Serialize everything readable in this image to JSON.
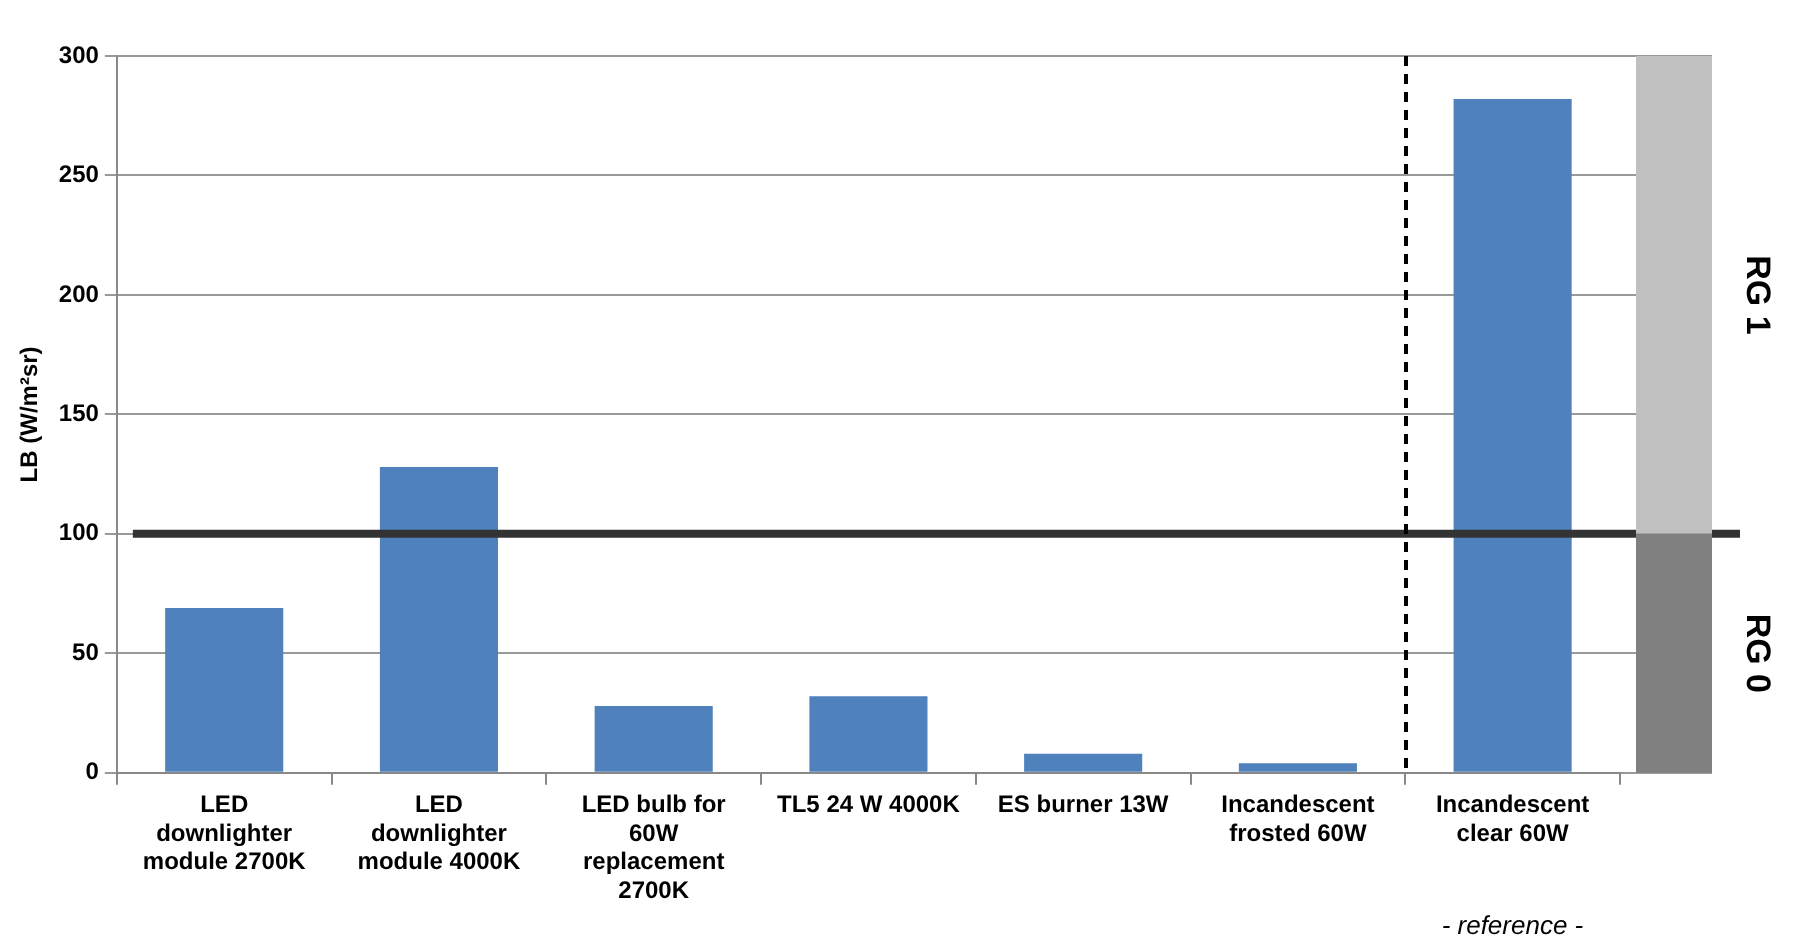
{
  "chart_data": {
    "type": "bar",
    "ylabel": "LB (W/m²sr)",
    "categories": [
      "LED downlighter module 2700K",
      "LED downlighter module 4000K",
      "LED bulb for 60W replacement 2700K",
      "TL5 24 W 4000K",
      "ES burner 13W",
      "Incandescent frosted 60W",
      "Incandescent clear 60W"
    ],
    "values": [
      69,
      128,
      28,
      32,
      8,
      4,
      282
    ],
    "color": "#4f81bd",
    "ylim": [
      0,
      300
    ],
    "yticks": [
      0,
      50,
      100,
      150,
      200,
      250,
      300
    ],
    "grid": "y",
    "ref_lines": [
      {
        "axis": "y",
        "value": 100,
        "color": "#333333",
        "line_style": "solid"
      }
    ],
    "annotations": [
      "- reference -"
    ],
    "bands": [
      {
        "axis": "y",
        "from": 0,
        "to": 100,
        "label": "RG 0",
        "color": "#808080"
      },
      {
        "axis": "y",
        "from": 100,
        "to": 300,
        "label": "RG 1",
        "color": "#c0c0c0"
      }
    ]
  }
}
